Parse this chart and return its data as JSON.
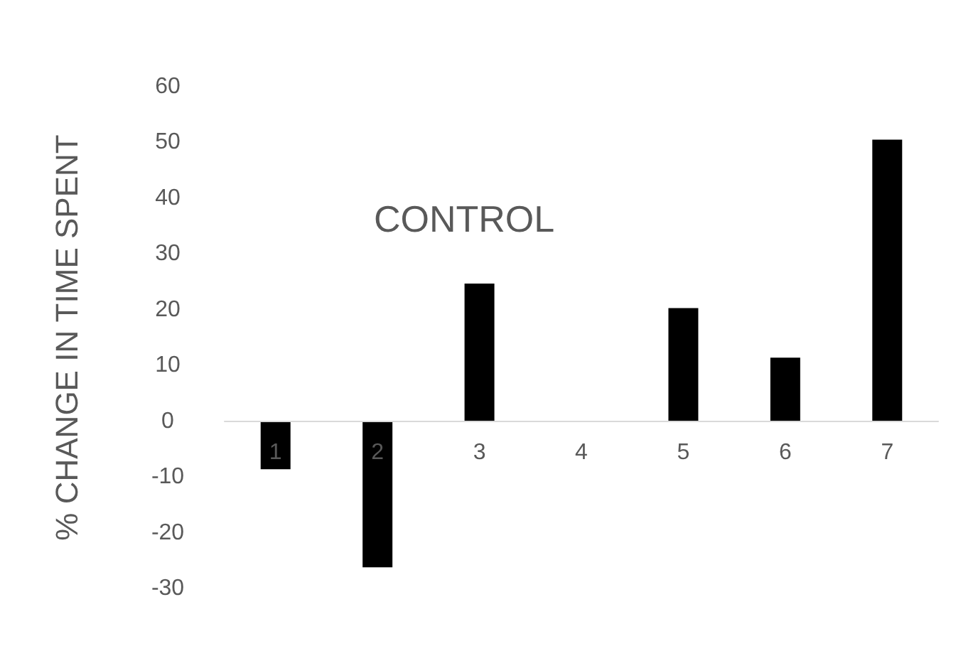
{
  "chart_data": {
    "type": "bar",
    "title": "CONTROL",
    "ylabel": "% CHANGE IN TIME SPENT",
    "categories": [
      "1",
      "2",
      "3",
      "4",
      "5",
      "6",
      "7"
    ],
    "values": [
      -8.6,
      -26.2,
      24.7,
      0,
      20.3,
      11.4,
      50.5
    ],
    "color": "#000000",
    "ylim": [
      -30,
      60
    ],
    "yticks": [
      -30,
      -20,
      -10,
      0,
      10,
      20,
      30,
      40,
      50,
      60
    ],
    "grid": false
  }
}
